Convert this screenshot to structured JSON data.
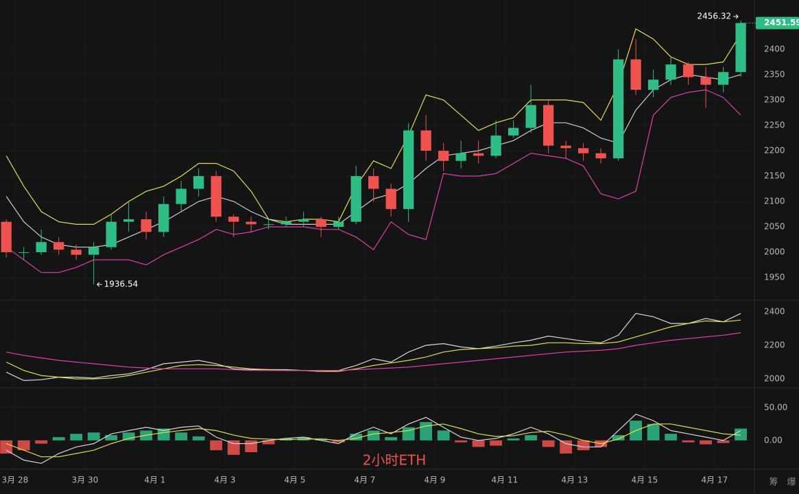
{
  "chart_data": [
    {
      "type": "candlestick",
      "x": [
        -0.25,
        0.25,
        0.75,
        1.25,
        1.75,
        2.25,
        2.75,
        3.25,
        3.75,
        4.25,
        4.75,
        5.25,
        5.75,
        6.25,
        6.75,
        7.25,
        7.75,
        8.25,
        8.75,
        9.25,
        9.75,
        10.25,
        10.75,
        11.25,
        11.75,
        12.25,
        12.75,
        13.25,
        13.75,
        14.25,
        14.75,
        15.25,
        15.75,
        16.25,
        16.75,
        17.25,
        17.75,
        18.25,
        18.75,
        19.25,
        19.75,
        20.25,
        20.75
      ],
      "open": [
        2060,
        2000,
        2000,
        2020,
        2005,
        1995,
        2010,
        2060,
        2065,
        2040,
        2095,
        2125,
        2150,
        2070,
        2060,
        2055,
        2055,
        2060,
        2065,
        2050,
        2060,
        2150,
        2125,
        2085,
        2240,
        2200,
        2180,
        2195,
        2190,
        2230,
        2245,
        2290,
        2210,
        2205,
        2195,
        2185,
        2380,
        2320,
        2340,
        2370,
        2345,
        2330,
        2355
      ],
      "high": [
        2065,
        2010,
        2045,
        2030,
        2015,
        2020,
        2075,
        2100,
        2080,
        2110,
        2140,
        2165,
        2160,
        2075,
        2070,
        2065,
        2070,
        2080,
        2070,
        2070,
        2170,
        2165,
        2135,
        2255,
        2270,
        2215,
        2220,
        2220,
        2260,
        2260,
        2330,
        2300,
        2220,
        2215,
        2205,
        2400,
        2420,
        2360,
        2385,
        2375,
        2365,
        2365,
        2456.32
      ],
      "low": [
        1990,
        1985,
        1995,
        1995,
        1985,
        1936.54,
        2005,
        2040,
        2025,
        2030,
        2080,
        2110,
        2060,
        2030,
        2040,
        2045,
        2050,
        2050,
        2030,
        2045,
        2055,
        2100,
        2070,
        2060,
        2180,
        2160,
        2165,
        2175,
        2185,
        2225,
        2235,
        2195,
        2185,
        2180,
        2175,
        2180,
        2310,
        2305,
        2330,
        2330,
        2285,
        2315,
        2345
      ],
      "close": [
        2000,
        2000,
        2020,
        2005,
        1995,
        2010,
        2060,
        2065,
        2040,
        2095,
        2125,
        2150,
        2070,
        2060,
        2055,
        2055,
        2060,
        2065,
        2050,
        2060,
        2150,
        2125,
        2085,
        2240,
        2200,
        2180,
        2195,
        2190,
        2230,
        2245,
        2290,
        2210,
        2205,
        2195,
        2185,
        2380,
        2320,
        2340,
        2370,
        2345,
        2330,
        2355,
        2451.59
      ],
      "up_color": "#2ebd85",
      "down_color": "#ef5350",
      "bands": [
        {
          "color": "#e8dc4c",
          "values": [
            2190,
            2130,
            2080,
            2060,
            2055,
            2055,
            2075,
            2100,
            2120,
            2130,
            2150,
            2175,
            2175,
            2160,
            2120,
            2065,
            2060,
            2065,
            2065,
            2060,
            2130,
            2180,
            2165,
            2230,
            2310,
            2300,
            2270,
            2240,
            2255,
            2265,
            2300,
            2300,
            2300,
            2295,
            2260,
            2330,
            2440,
            2420,
            2385,
            2370,
            2370,
            2375,
            2430
          ]
        },
        {
          "color": "#cfcfcf",
          "values": [
            2110,
            2060,
            2030,
            2015,
            2010,
            2010,
            2015,
            2030,
            2045,
            2060,
            2080,
            2100,
            2110,
            2100,
            2080,
            2065,
            2055,
            2055,
            2055,
            2055,
            2080,
            2105,
            2115,
            2135,
            2165,
            2190,
            2195,
            2200,
            2210,
            2220,
            2240,
            2255,
            2255,
            2245,
            2225,
            2215,
            2280,
            2320,
            2340,
            2350,
            2345,
            2340,
            2350
          ]
        },
        {
          "color": "#e040b0",
          "values": [
            2010,
            1985,
            1960,
            1960,
            1970,
            1985,
            1985,
            1985,
            1975,
            1995,
            2010,
            2025,
            2045,
            2035,
            2040,
            2050,
            2050,
            2050,
            2045,
            2045,
            2030,
            2005,
            2060,
            2035,
            2025,
            2155,
            2150,
            2150,
            2155,
            2175,
            2195,
            2190,
            2185,
            2170,
            2115,
            2105,
            2120,
            2270,
            2305,
            2315,
            2320,
            2305,
            2270
          ]
        }
      ],
      "xlim": [
        -0.43,
        21.14
      ],
      "xticks": [
        {
          "value": 0,
          "label": "3月 28"
        },
        {
          "value": 2,
          "label": "3月 30"
        },
        {
          "value": 4,
          "label": "4月 1"
        },
        {
          "value": 6,
          "label": "4月 3"
        },
        {
          "value": 8,
          "label": "4月 5"
        },
        {
          "value": 10,
          "label": "4月 7"
        },
        {
          "value": 12,
          "label": "4月 9"
        },
        {
          "value": 14,
          "label": "4月 11"
        },
        {
          "value": 16,
          "label": "4月 13"
        },
        {
          "value": 18,
          "label": "4月 15"
        },
        {
          "value": 20,
          "label": "4月 17"
        }
      ],
      "ylim": [
        1907,
        2497
      ],
      "yticks": [
        1950,
        2000,
        2050,
        2100,
        2150,
        2200,
        2250,
        2300,
        2350,
        2400
      ],
      "grid": true,
      "watermark": "2小时ETH",
      "corner_icons": [
        "筹",
        "爆"
      ]
    },
    {
      "type": "line",
      "series": [
        {
          "color": "#d8d8d8",
          "values": [
            2040,
            1990,
            1995,
            2010,
            2010,
            2005,
            2020,
            2030,
            2055,
            2090,
            2100,
            2110,
            2090,
            2060,
            2055,
            2055,
            2055,
            2050,
            2045,
            2050,
            2080,
            2120,
            2100,
            2160,
            2200,
            2210,
            2190,
            2180,
            2195,
            2215,
            2230,
            2255,
            2240,
            2225,
            2215,
            2260,
            2390,
            2370,
            2330,
            2330,
            2360,
            2340,
            2390
          ]
        },
        {
          "color": "#e8dc4c",
          "values": [
            2100,
            2050,
            2020,
            2010,
            2000,
            2000,
            2005,
            2020,
            2040,
            2060,
            2080,
            2085,
            2080,
            2070,
            2060,
            2055,
            2050,
            2050,
            2045,
            2045,
            2060,
            2080,
            2095,
            2110,
            2130,
            2160,
            2175,
            2180,
            2185,
            2195,
            2200,
            2215,
            2215,
            2210,
            2210,
            2220,
            2250,
            2280,
            2310,
            2330,
            2345,
            2340,
            2350
          ]
        },
        {
          "color": "#e040b0",
          "values": [
            2160,
            2140,
            2125,
            2110,
            2100,
            2090,
            2080,
            2070,
            2065,
            2060,
            2060,
            2060,
            2060,
            2055,
            2050,
            2050,
            2050,
            2050,
            2050,
            2050,
            2055,
            2060,
            2065,
            2070,
            2080,
            2090,
            2100,
            2110,
            2120,
            2130,
            2140,
            2150,
            2160,
            2165,
            2170,
            2180,
            2200,
            2215,
            2230,
            2240,
            2250,
            2260,
            2275
          ]
        }
      ],
      "ylim": [
        1951,
        2461
      ],
      "yticks": [
        2000,
        2200,
        2400
      ]
    },
    {
      "type": "macd",
      "histogram": [
        -20,
        -15,
        -5,
        5,
        10,
        12,
        8,
        12,
        15,
        18,
        12,
        6,
        -15,
        -22,
        -18,
        -6,
        3,
        5,
        3,
        -3,
        10,
        15,
        5,
        20,
        28,
        15,
        -3,
        -10,
        -8,
        3,
        8,
        -10,
        -20,
        -15,
        -10,
        8,
        30,
        25,
        10,
        -3,
        -6,
        -4,
        18
      ],
      "up_color": "#2ebd85",
      "down_color": "#ef5350",
      "series": [
        {
          "color": "#d8d8d8",
          "values": [
            -15,
            -30,
            -35,
            -20,
            -10,
            -5,
            10,
            15,
            20,
            15,
            20,
            22,
            5,
            -5,
            -5,
            0,
            3,
            5,
            0,
            -5,
            10,
            20,
            10,
            25,
            35,
            20,
            5,
            0,
            3,
            10,
            20,
            10,
            -5,
            -10,
            -10,
            15,
            40,
            30,
            15,
            10,
            5,
            0,
            15
          ]
        },
        {
          "color": "#e8dc4c",
          "values": [
            -5,
            -15,
            -25,
            -25,
            -20,
            -15,
            -5,
            3,
            8,
            12,
            15,
            18,
            15,
            8,
            3,
            2,
            1,
            2,
            2,
            0,
            3,
            10,
            12,
            15,
            22,
            25,
            18,
            10,
            6,
            7,
            12,
            14,
            8,
            0,
            -5,
            2,
            15,
            25,
            25,
            20,
            15,
            10,
            8
          ]
        }
      ],
      "ylim": [
        -42,
        78
      ],
      "yticks": [
        {
          "value": 0,
          "label": "0.00"
        },
        {
          "value": 50,
          "label": "50.00"
        }
      ]
    }
  ]
}
